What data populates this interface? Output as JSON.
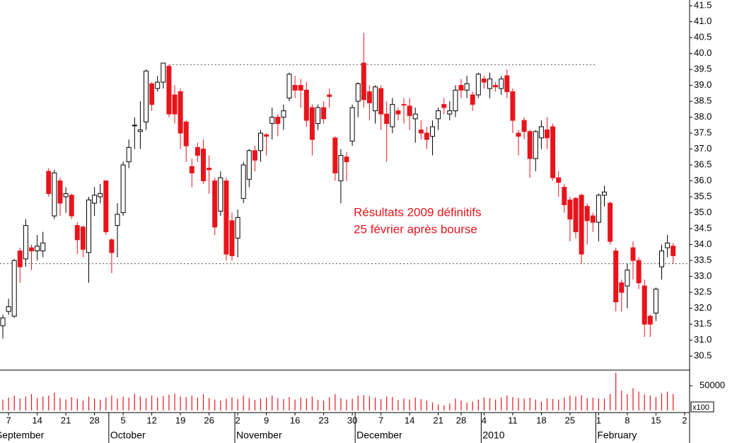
{
  "chart_data": {
    "type": "candlestick",
    "annotation": [
      "Résultats 2009 définitifs",
      "25 février après bourse"
    ],
    "up_color": "#ffffff",
    "down_color": "#e8141c",
    "volume_color": "#e8141c",
    "open": [
      31.45,
      31.9,
      31.75,
      33.8,
      33.55,
      33.9,
      33.8,
      33.8,
      36.3,
      34.9,
      36.0,
      35.5,
      35.55,
      34.6,
      34.55,
      33.75,
      35.3,
      35.5,
      36.0,
      34.15,
      34.6,
      35.0,
      36.6,
      37.75,
      37.55,
      37.85,
      39.05,
      38.9,
      39.1,
      39.6,
      38.7,
      38.8,
      37.85,
      36.45,
      37.05,
      37.0,
      36.4,
      36.0,
      35.05,
      36.0,
      34.75,
      34.2,
      35.45,
      36.05,
      36.95,
      36.95,
      37.45,
      37.8,
      38.0,
      38.0,
      38.6,
      39.0,
      39.0,
      38.85,
      38.3,
      37.8,
      38.3,
      38.7,
      37.35,
      36.0,
      36.75,
      37.25,
      38.5,
      39.7,
      38.8,
      38.2,
      38.9,
      38.1,
      37.7,
      38.2,
      38.4,
      38.35,
      37.95,
      37.6,
      37.5,
      37.4,
      37.95,
      38.4,
      38.1,
      38.2,
      39.0,
      38.85,
      38.7,
      38.7,
      39.2,
      38.9,
      39.0,
      38.9,
      39.3,
      38.8,
      37.5,
      37.9,
      37.55,
      36.7,
      37.35,
      37.6,
      37.7,
      36.1,
      35.8,
      35.4,
      35.45,
      35.55,
      35.2,
      34.9,
      34.7,
      35.55,
      35.3,
      33.8,
      32.8,
      32.7,
      33.9,
      33.5,
      32.7,
      31.75,
      31.85,
      33.3,
      33.9,
      33.95
    ],
    "high": [
      31.8,
      32.3,
      33.55,
      33.9,
      34.8,
      34.0,
      34.3,
      34.4,
      36.4,
      36.35,
      36.1,
      35.8,
      35.6,
      34.7,
      34.6,
      35.5,
      35.8,
      35.9,
      36.0,
      34.2,
      35.3,
      36.6,
      37.3,
      38.0,
      38.5,
      39.5,
      39.1,
      39.3,
      39.7,
      39.65,
      39.0,
      38.9,
      37.9,
      36.7,
      37.2,
      37.3,
      36.8,
      36.1,
      36.3,
      36.1,
      35.0,
      35.1,
      36.6,
      37.0,
      37.1,
      37.6,
      37.5,
      38.3,
      38.1,
      38.4,
      39.4,
      39.3,
      39.2,
      39.1,
      38.4,
      38.4,
      38.5,
      38.9,
      37.4,
      37.0,
      36.9,
      38.4,
      39.1,
      40.65,
      39.0,
      39.0,
      39.0,
      38.5,
      38.6,
      38.3,
      38.6,
      38.6,
      38.3,
      37.9,
      37.7,
      37.9,
      38.3,
      38.6,
      38.5,
      39.0,
      39.2,
      39.3,
      38.8,
      39.4,
      39.3,
      39.4,
      39.1,
      39.3,
      39.5,
      38.9,
      37.6,
      38.0,
      37.6,
      37.6,
      37.9,
      38.0,
      37.8,
      36.3,
      35.9,
      35.5,
      35.5,
      35.6,
      35.3,
      35.0,
      35.6,
      35.85,
      35.35,
      33.9,
      32.9,
      33.4,
      34.1,
      33.6,
      32.9,
      31.8,
      32.65,
      34.0,
      34.3,
      34.05
    ],
    "low": [
      31.05,
      31.8,
      31.7,
      32.8,
      33.3,
      33.2,
      33.5,
      33.6,
      35.5,
      34.8,
      34.9,
      35.0,
      34.8,
      33.7,
      33.6,
      32.8,
      34.9,
      35.3,
      34.3,
      33.1,
      33.6,
      34.9,
      36.4,
      37.0,
      37.0,
      37.6,
      38.2,
      38.8,
      38.9,
      38.0,
      37.8,
      37.0,
      36.6,
      35.8,
      36.6,
      35.9,
      35.6,
      34.3,
      34.9,
      33.5,
      33.5,
      33.6,
      35.3,
      35.8,
      36.3,
      36.6,
      36.8,
      37.3,
      37.4,
      37.6,
      38.5,
      38.6,
      38.3,
      37.7,
      36.8,
      37.6,
      37.8,
      38.3,
      36.0,
      35.3,
      36.0,
      37.1,
      38.0,
      38.3,
      37.9,
      37.8,
      37.6,
      36.6,
      37.5,
      37.9,
      37.8,
      37.6,
      37.2,
      37.3,
      37.0,
      36.8,
      37.6,
      38.1,
      37.9,
      38.0,
      38.6,
      38.6,
      38.2,
      38.6,
      38.9,
      38.6,
      38.8,
      38.7,
      38.6,
      37.5,
      36.8,
      37.3,
      36.1,
      36.3,
      37.0,
      37.0,
      36.0,
      35.5,
      35.0,
      34.1,
      34.2,
      33.4,
      34.0,
      34.4,
      34.1,
      35.2,
      34.0,
      31.9,
      31.9,
      32.0,
      32.9,
      32.6,
      31.1,
      31.1,
      31.6,
      32.9,
      33.6,
      33.4
    ],
    "close": [
      31.7,
      32.05,
      33.5,
      33.3,
      34.6,
      33.8,
      33.95,
      34.05,
      35.6,
      36.25,
      35.3,
      35.6,
      34.9,
      34.15,
      33.85,
      35.4,
      35.55,
      35.6,
      34.4,
      33.75,
      34.95,
      36.5,
      37.05,
      37.75,
      37.6,
      39.45,
      38.4,
      39.1,
      39.7,
      38.1,
      38.1,
      37.5,
      37.1,
      36.25,
      36.8,
      36.0,
      36.35,
      34.55,
      36.1,
      33.7,
      33.65,
      34.85,
      36.5,
      36.95,
      36.65,
      37.5,
      37.4,
      38.0,
      37.8,
      38.2,
      39.35,
      38.85,
      38.85,
      37.9,
      37.3,
      38.3,
      37.95,
      38.65,
      36.25,
      36.8,
      36.6,
      38.3,
      39.05,
      38.55,
      38.45,
      38.95,
      38.1,
      37.8,
      38.4,
      38.1,
      38.38,
      38.05,
      38.1,
      37.5,
      37.3,
      37.7,
      38.2,
      38.3,
      38.2,
      38.85,
      38.85,
      39.05,
      38.4,
      39.35,
      39.1,
      39.2,
      38.95,
      39.2,
      38.8,
      37.9,
      37.4,
      37.55,
      36.7,
      37.55,
      37.7,
      37.35,
      36.1,
      35.95,
      35.25,
      34.8,
      34.4,
      33.7,
      34.75,
      34.7,
      35.55,
      35.65,
      34.1,
      32.2,
      32.5,
      33.2,
      33.5,
      32.8,
      31.5,
      31.5,
      32.6,
      33.8,
      34.05,
      33.65
    ],
    "volume": [
      22000,
      26000,
      30000,
      24000,
      28000,
      33000,
      25000,
      28000,
      30000,
      36000,
      25000,
      22000,
      27000,
      24000,
      20000,
      28000,
      24000,
      22000,
      26000,
      30000,
      24000,
      28000,
      26000,
      34000,
      28000,
      25000,
      30000,
      26000,
      29000,
      32000,
      34000,
      28000,
      27000,
      30000,
      26000,
      33000,
      25000,
      22000,
      20000,
      24000,
      26000,
      23000,
      30000,
      25000,
      21000,
      24000,
      26000,
      30000,
      25000,
      23000,
      27000,
      22000,
      26000,
      24000,
      28000,
      21000,
      20000,
      27000,
      33000,
      25000,
      22000,
      24000,
      30000,
      31000,
      29000,
      26000,
      23000,
      28000,
      27000,
      21000,
      24000,
      22000,
      26000,
      23000,
      20000,
      16000,
      12000,
      10000,
      14000,
      24000,
      20000,
      16000,
      18000,
      22000,
      26000,
      25000,
      22000,
      26000,
      30000,
      27000,
      25000,
      24000,
      26000,
      22000,
      18000,
      24000,
      23000,
      22000,
      26000,
      30000,
      28000,
      31000,
      25000,
      26000,
      24000,
      24000,
      33000,
      76000,
      40000,
      33000,
      45000,
      38000,
      32000,
      30000,
      27000,
      34000,
      38000,
      33000
    ],
    "ylim": [
      30.08,
      41.68
    ],
    "yticks": [
      30.5,
      {
        "value": 31,
        "label": "31.0"
      },
      31.5,
      {
        "value": 32,
        "label": "32.0"
      },
      32.5,
      {
        "value": 33,
        "label": "33.0"
      },
      33.5,
      {
        "value": 34,
        "label": "34.0"
      },
      34.5,
      {
        "value": 35,
        "label": "35.0"
      },
      35.5,
      {
        "value": 36,
        "label": "36.0"
      },
      36.5,
      {
        "value": 37,
        "label": "37.0"
      },
      37.5,
      {
        "value": 38,
        "label": "38.0"
      },
      38.5,
      {
        "value": 39,
        "label": "39.0"
      },
      39.5,
      {
        "value": 40,
        "label": "40.0"
      },
      40.5,
      {
        "value": 41,
        "label": "41.0"
      },
      41.5
    ],
    "volume_ylim": [
      0,
      80000
    ],
    "volume_yticks": [
      50000
    ],
    "volume_unit": "x100",
    "reference_lines": [
      {
        "value": 39.65,
        "from": 29,
        "to": 103.5
      },
      {
        "value": 33.4
      }
    ],
    "xlim": [
      -0.5,
      119.5
    ],
    "xticks": [
      {
        "value": 1,
        "label": "7"
      },
      {
        "value": 6,
        "label": "14"
      },
      {
        "value": 11,
        "label": "21"
      },
      {
        "value": 16,
        "label": "28"
      },
      {
        "value": 21,
        "label": "5"
      },
      {
        "value": 26,
        "label": "12"
      },
      {
        "value": 31,
        "label": "19"
      },
      {
        "value": 36,
        "label": "26"
      },
      {
        "value": 41,
        "label": "2"
      },
      {
        "value": 46,
        "label": "9"
      },
      {
        "value": 51,
        "label": "16"
      },
      {
        "value": 56,
        "label": "23"
      },
      {
        "value": 61,
        "label": "30"
      },
      {
        "value": 66,
        "label": "7"
      },
      {
        "value": 71,
        "label": "14"
      },
      {
        "value": 76,
        "label": "21"
      },
      {
        "value": 80,
        "label": "28"
      },
      {
        "value": 84,
        "label": "4"
      },
      {
        "value": 89,
        "label": "11"
      },
      {
        "value": 94,
        "label": "18"
      },
      {
        "value": 99,
        "label": "25"
      },
      {
        "value": 104,
        "label": "1"
      },
      {
        "value": 109,
        "label": "8"
      },
      {
        "value": 114,
        "label": "15"
      },
      {
        "value": 119,
        "label": "2"
      }
    ],
    "months": [
      {
        "value": -1.5,
        "label": "September"
      },
      {
        "value": 18.5,
        "label": "October"
      },
      {
        "value": 40.5,
        "label": "November"
      },
      {
        "value": 61.5,
        "label": "December"
      },
      {
        "value": 83.5,
        "label": "2010"
      },
      {
        "value": 103.5,
        "label": "February"
      }
    ]
  }
}
